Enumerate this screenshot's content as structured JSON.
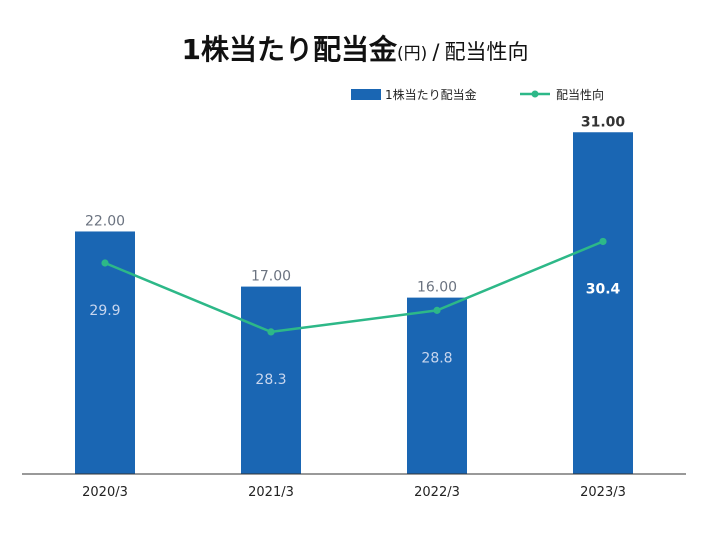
{
  "title": {
    "main": "1株当たり配当金",
    "unit": "(円)",
    "separator": "/",
    "sub": "配当性向"
  },
  "chart_data": {
    "type": "bar",
    "categories": [
      "2020/3",
      "2021/3",
      "2022/3",
      "2023/3"
    ],
    "series": [
      {
        "name": "1株当たり配当金",
        "type": "bar",
        "values": [
          22.0,
          17.0,
          16.0,
          31.0
        ],
        "labels": [
          "22.00",
          "17.00",
          "16.00",
          "31.00"
        ],
        "color": "#1a66b3"
      },
      {
        "name": "配当性向",
        "type": "line",
        "values": [
          29.9,
          28.3,
          28.8,
          30.4
        ],
        "labels": [
          "29.9",
          "28.3",
          "28.8",
          "30.4"
        ],
        "color": "#2db888"
      }
    ],
    "ylim": [
      0,
      33.2
    ],
    "ylim_secondary": [
      25,
      33.5
    ],
    "legend_position": "top-right",
    "grid": false
  }
}
